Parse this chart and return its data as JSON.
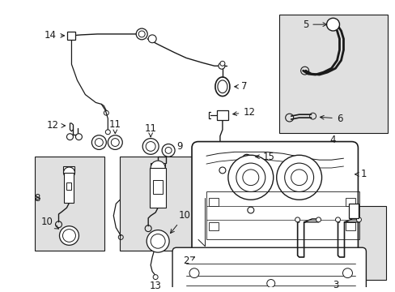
{
  "bg_color": "#ffffff",
  "line_color": "#1a1a1a",
  "box_bg": "#e0e0e0",
  "figsize": [
    4.89,
    3.6
  ],
  "dpi": 100,
  "font_size": 8.5
}
